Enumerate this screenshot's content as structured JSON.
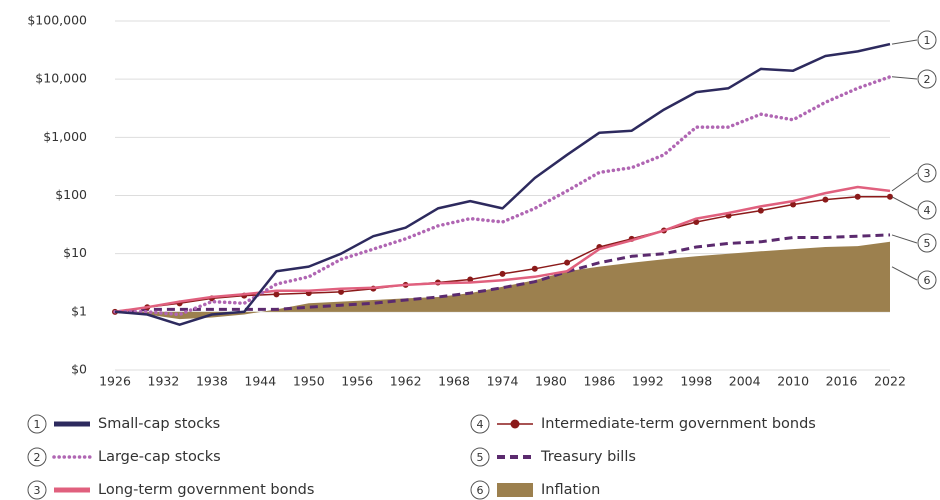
{
  "chart_data": {
    "type": "line",
    "log_scale": true,
    "x": [
      1926,
      1930,
      1934,
      1938,
      1942,
      1946,
      1950,
      1954,
      1958,
      1962,
      1966,
      1970,
      1974,
      1978,
      1982,
      1986,
      1990,
      1994,
      1998,
      2002,
      2006,
      2010,
      2014,
      2018,
      2022
    ],
    "xlim": [
      1926,
      2022
    ],
    "xticks": [
      1926,
      1932,
      1938,
      1944,
      1950,
      1956,
      1962,
      1968,
      1974,
      1980,
      1986,
      1992,
      1998,
      2004,
      2010,
      2016,
      2022
    ],
    "ylim": [
      0.1,
      100000
    ],
    "yticks": [
      {
        "value": 0.1,
        "label": "$0"
      },
      {
        "value": 1,
        "label": "$1"
      },
      {
        "value": 10,
        "label": "$10"
      },
      {
        "value": 100,
        "label": "$100"
      },
      {
        "value": 1000,
        "label": "$1,000"
      },
      {
        "value": 10000,
        "label": "$10,000"
      },
      {
        "value": 100000,
        "label": "$100,000"
      }
    ],
    "grid": true,
    "series": [
      {
        "name": "Small-cap stocks",
        "callout": "1",
        "color": "#2d2a5e",
        "style": "solid",
        "values": [
          1,
          0.9,
          0.6,
          0.9,
          1.0,
          5,
          6,
          10,
          20,
          28,
          60,
          80,
          60,
          200,
          500,
          1200,
          1300,
          3000,
          6000,
          7000,
          15000,
          14000,
          25000,
          30000,
          40000
        ]
      },
      {
        "name": "Large-cap stocks",
        "callout": "2",
        "color": "#b066b3",
        "style": "dotted",
        "values": [
          1,
          1.0,
          0.9,
          1.5,
          1.4,
          3,
          4,
          8,
          12,
          18,
          30,
          40,
          35,
          60,
          120,
          250,
          300,
          500,
          1500,
          1500,
          2500,
          2000,
          4000,
          7000,
          11000
        ]
      },
      {
        "name": "Long-term government bonds",
        "callout": "3",
        "color": "#e0607e",
        "style": "solid",
        "values": [
          1,
          1.2,
          1.5,
          1.8,
          2.0,
          2.3,
          2.3,
          2.5,
          2.6,
          2.9,
          3.1,
          3.2,
          3.5,
          4.0,
          5,
          12,
          17,
          25,
          40,
          50,
          65,
          80,
          110,
          140,
          120
        ]
      },
      {
        "name": "Intermediate-term government bonds",
        "callout": "4",
        "color": "#8b1a1a",
        "style": "markers",
        "values": [
          1,
          1.2,
          1.4,
          1.7,
          1.9,
          2.0,
          2.1,
          2.2,
          2.5,
          2.9,
          3.2,
          3.6,
          4.5,
          5.5,
          7,
          13,
          18,
          25,
          35,
          45,
          55,
          70,
          85,
          95,
          95
        ]
      },
      {
        "name": "Treasury bills",
        "callout": "5",
        "color": "#5b2a6e",
        "style": "dashed",
        "values": [
          1,
          1.1,
          1.1,
          1.1,
          1.1,
          1.1,
          1.2,
          1.3,
          1.4,
          1.6,
          1.8,
          2.1,
          2.6,
          3.3,
          4.9,
          7,
          9,
          10,
          13,
          15,
          16,
          19,
          19,
          20,
          21
        ]
      },
      {
        "name": "Inflation",
        "callout": "6",
        "color": "#9c804e",
        "style": "area",
        "values": [
          1,
          0.9,
          0.75,
          0.8,
          0.9,
          1.1,
          1.4,
          1.5,
          1.6,
          1.7,
          1.8,
          2.1,
          2.7,
          3.5,
          5,
          6,
          7,
          8,
          9,
          10,
          11,
          12,
          13,
          13.5,
          16
        ]
      }
    ]
  }
}
